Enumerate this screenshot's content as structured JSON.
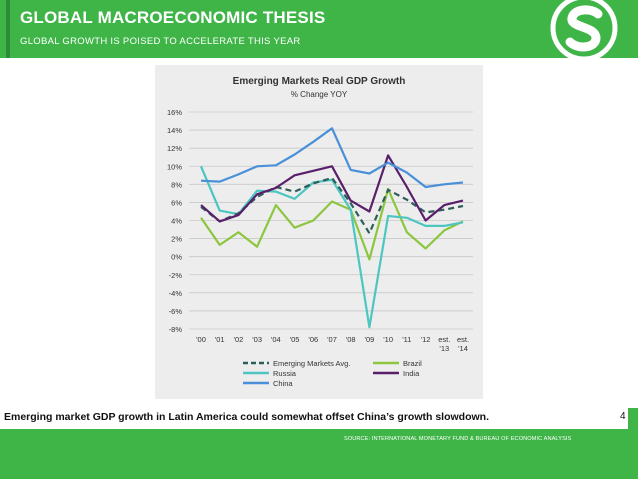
{
  "header": {
    "title": "GLOBAL MACROECONOMIC THESIS",
    "subtitle": "GLOBAL GROWTH IS POISED TO ACCELERATE THIS YEAR",
    "logo_icon": "s-logo-icon"
  },
  "chart_data": {
    "type": "line",
    "title": "Emerging Markets Real GDP Growth",
    "subtitle": "% Change YOY",
    "xlabel": "",
    "ylabel": "",
    "ylim": [
      -8,
      16
    ],
    "yticks": [
      -8,
      -6,
      -4,
      -2,
      0,
      2,
      4,
      6,
      8,
      10,
      12,
      14,
      16
    ],
    "ytick_labels": [
      "-8%",
      "-6%",
      "-4%",
      "-2%",
      "0%",
      "2%",
      "4%",
      "6%",
      "8%",
      "10%",
      "12%",
      "14%",
      "16%"
    ],
    "categories": [
      "'00",
      "'01",
      "'02",
      "'03",
      "'04",
      "'05",
      "'06",
      "'07",
      "'08",
      "'09",
      "'10",
      "'11",
      "'12",
      "est. '13",
      "est. '14"
    ],
    "grid": true,
    "legend_position": "bottom",
    "series": [
      {
        "name": "Emerging Markets Avg.",
        "color": "#2e5f5a",
        "dashed": true,
        "values": [
          5.5,
          3.9,
          4.8,
          6.6,
          7.7,
          7.2,
          8.1,
          8.7,
          5.9,
          2.6,
          7.4,
          6.3,
          4.9,
          5.2,
          5.6
        ]
      },
      {
        "name": "Brazil",
        "color": "#8cc63f",
        "dashed": false,
        "values": [
          4.3,
          1.3,
          2.7,
          1.1,
          5.7,
          3.2,
          4.0,
          6.1,
          5.2,
          -0.3,
          7.5,
          2.7,
          0.9,
          2.9,
          3.9
        ]
      },
      {
        "name": "Russia",
        "color": "#4cc6c0",
        "dashed": false,
        "values": [
          10.0,
          5.1,
          4.7,
          7.3,
          7.2,
          6.4,
          8.2,
          8.5,
          5.2,
          -7.8,
          4.5,
          4.3,
          3.4,
          3.4,
          3.8
        ]
      },
      {
        "name": "India",
        "color": "#5a1f6b",
        "dashed": false,
        "values": [
          5.7,
          3.9,
          4.6,
          6.9,
          7.6,
          9.0,
          9.5,
          10.0,
          6.2,
          5.0,
          11.2,
          7.7,
          4.0,
          5.7,
          6.2
        ]
      },
      {
        "name": "China",
        "color": "#4a90d9",
        "dashed": false,
        "values": [
          8.4,
          8.3,
          9.1,
          10.0,
          10.1,
          11.3,
          12.7,
          14.2,
          9.6,
          9.2,
          10.4,
          9.3,
          7.7,
          8.0,
          8.2
        ]
      }
    ]
  },
  "caption": "Emerging market GDP growth in Latin America could somewhat offset China’s growth slowdown.",
  "page_number": "4",
  "source": "SOURCE: INTERNATIONAL MONETARY FUND & BUREAU OF ECONOMIC ANALYSIS"
}
